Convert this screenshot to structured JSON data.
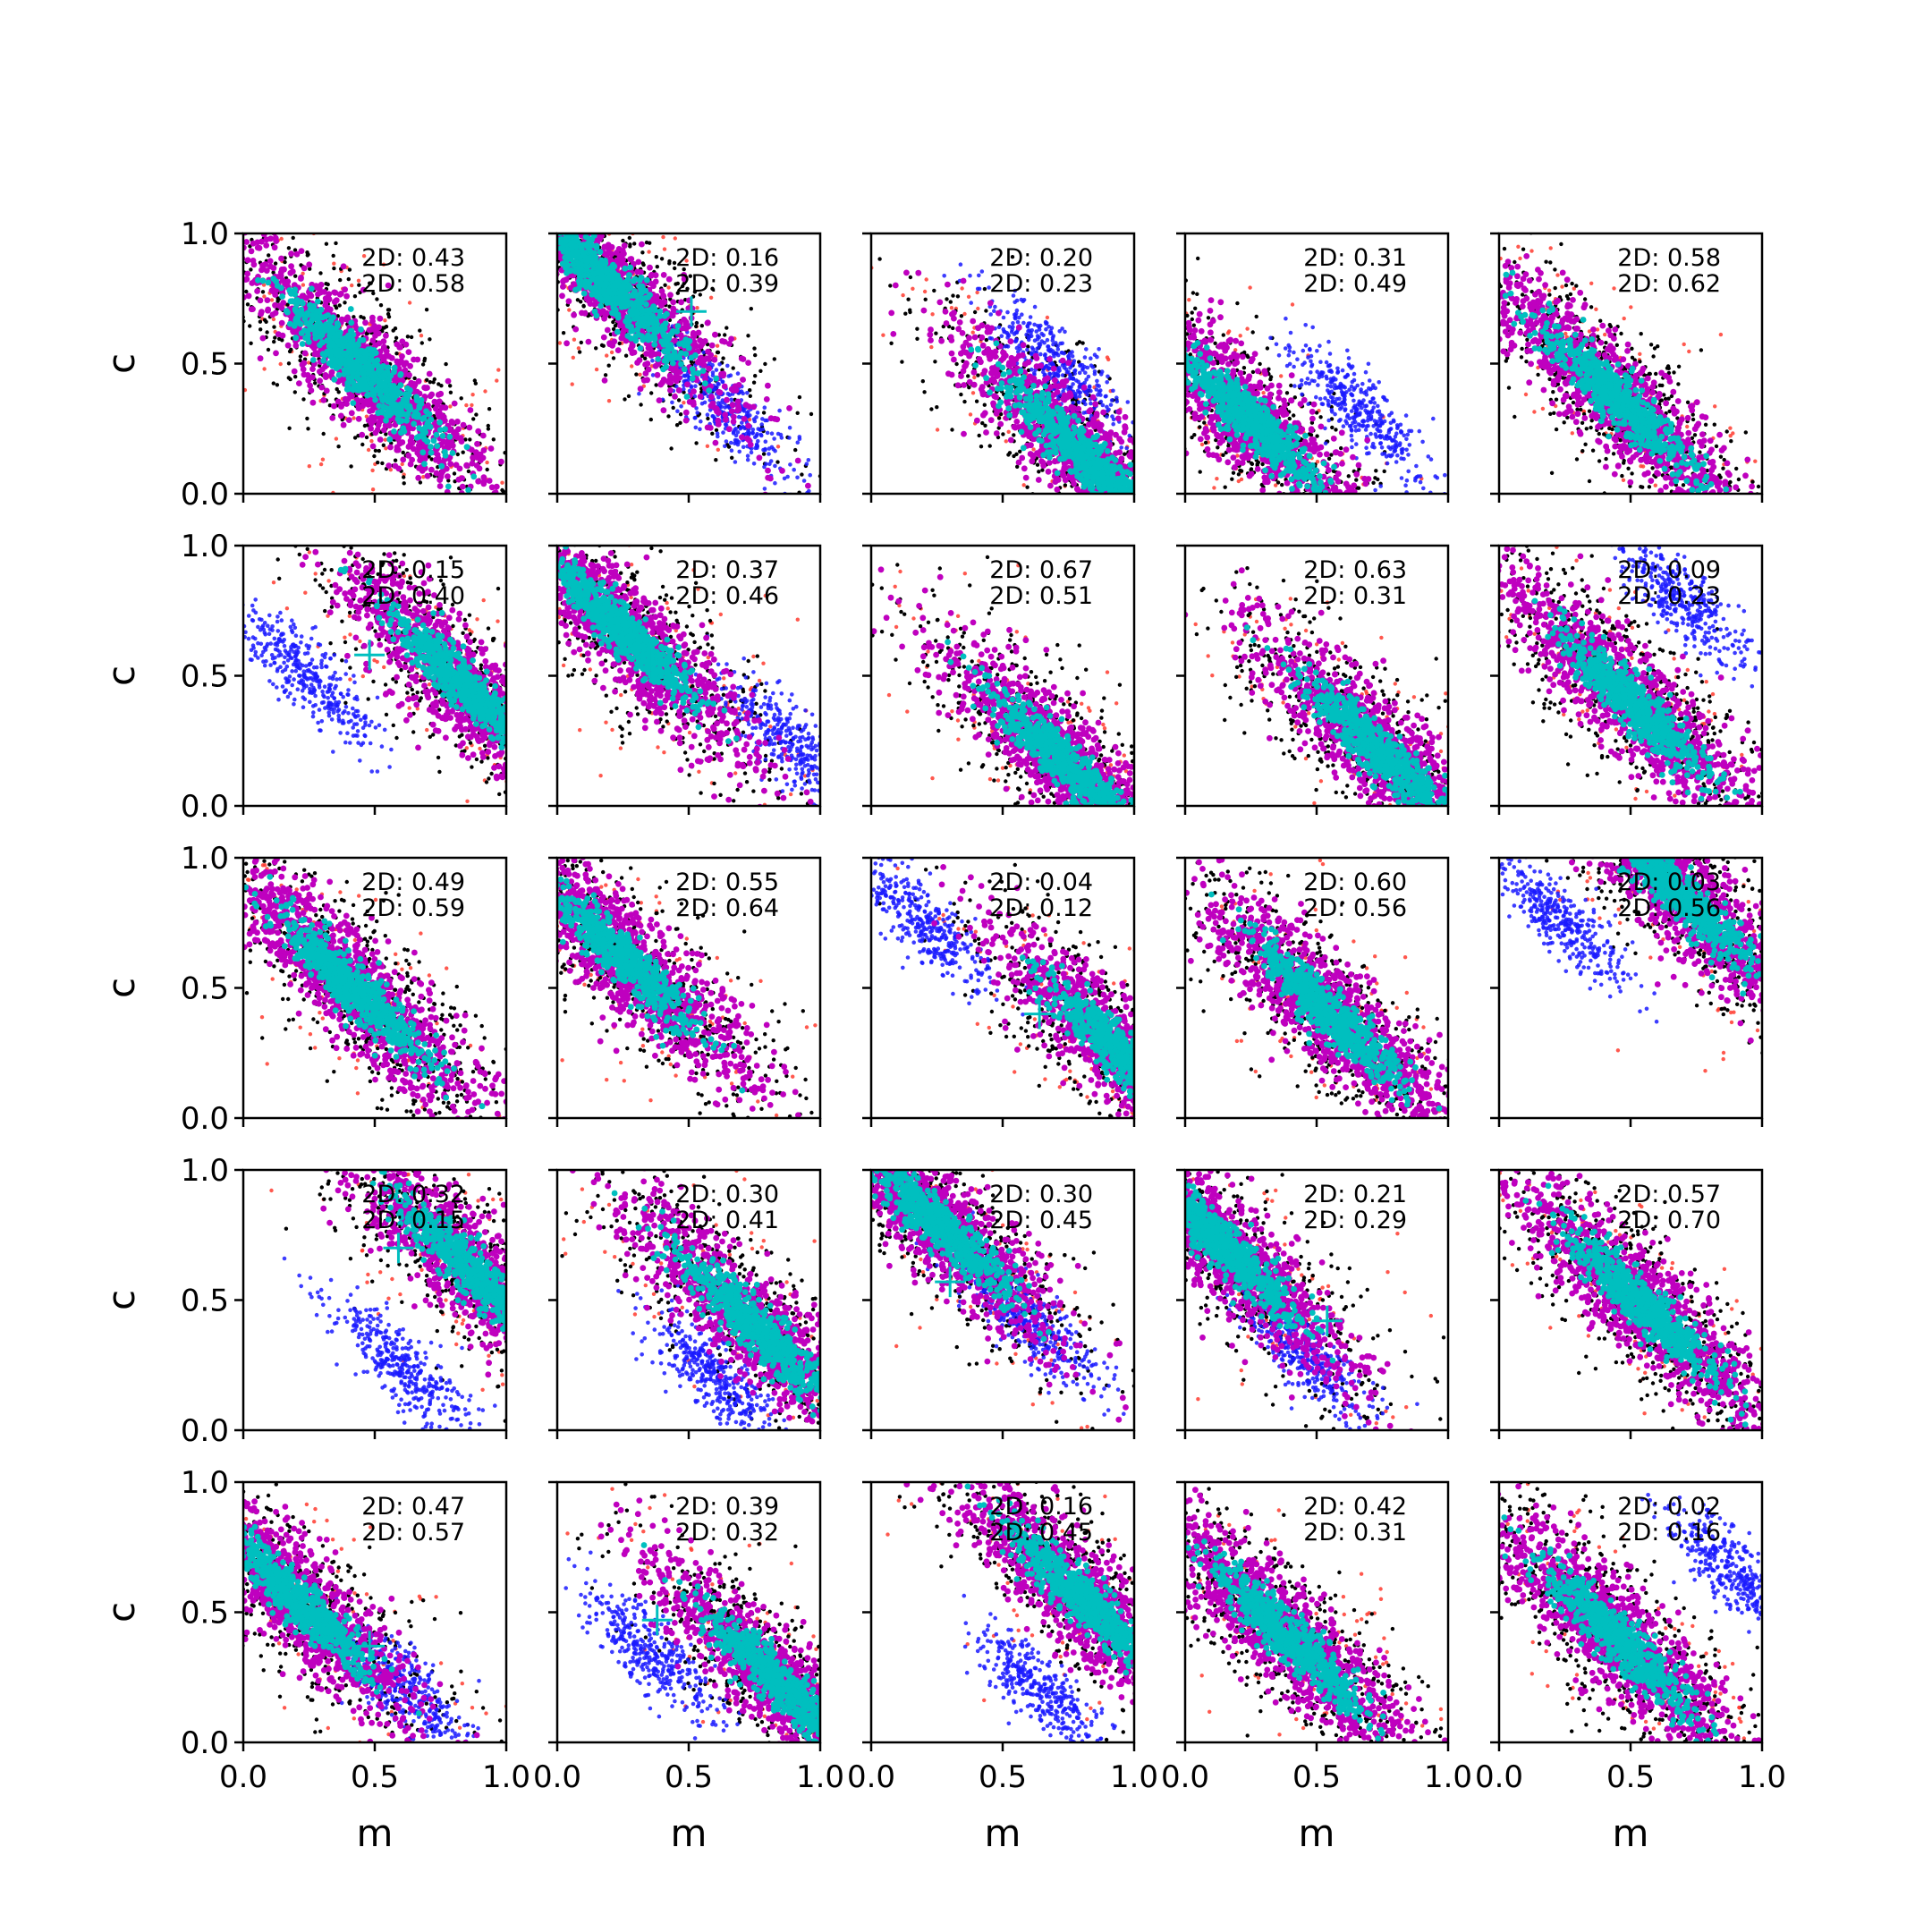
{
  "chart_data": {
    "type": "scatter",
    "layout": "5x5 grid of subplots",
    "xlabel": "m",
    "ylabel": "c",
    "xlim": [
      0.0,
      1.0
    ],
    "ylim": [
      0.0,
      1.0
    ],
    "xticks": [
      "0.0",
      "0.5",
      "1.0"
    ],
    "yticks": [
      "0.0",
      "0.5",
      "1.0"
    ],
    "grid": false,
    "colors": {
      "outer": "#000000",
      "outlier": "#ff3b2f",
      "prior": "#1a1aff",
      "posterior": "#bf00bf",
      "core": "#00bfbf",
      "marker": "#00bfbf"
    },
    "panels": [
      {
        "row": 0,
        "col": 0,
        "label1": "2D: 0.43",
        "label2": "2D: 0.58",
        "center": [
          0.45,
          0.48
        ],
        "prior": null,
        "cross": null
      },
      {
        "row": 0,
        "col": 1,
        "label1": "2D: 0.16",
        "label2": "2D: 0.39",
        "center": [
          0.2,
          0.8
        ],
        "prior": [
          0.65,
          0.32
        ],
        "cross": [
          0.51,
          0.7
        ]
      },
      {
        "row": 0,
        "col": 2,
        "label1": "2D: 0.20",
        "label2": "2D: 0.23",
        "center": [
          0.8,
          0.15
        ],
        "prior": [
          0.7,
          0.5
        ],
        "cross": null
      },
      {
        "row": 0,
        "col": 3,
        "label1": "2D: 0.31",
        "label2": "2D: 0.49",
        "center": [
          0.25,
          0.28
        ],
        "prior": [
          0.65,
          0.33
        ],
        "cross": null
      },
      {
        "row": 0,
        "col": 4,
        "label1": "2D: 0.58",
        "label2": "2D: 0.62",
        "center": [
          0.45,
          0.36
        ],
        "prior": null,
        "cross": null
      },
      {
        "row": 1,
        "col": 0,
        "label1": "2D: 0.15",
        "label2": "2D: 0.40",
        "center": [
          0.85,
          0.45
        ],
        "prior": [
          0.25,
          0.5
        ],
        "cross": [
          0.48,
          0.58
        ]
      },
      {
        "row": 1,
        "col": 1,
        "label1": "2D: 0.37",
        "label2": "2D: 0.46",
        "center": [
          0.25,
          0.68
        ],
        "prior": [
          0.9,
          0.22
        ],
        "cross": [
          0.35,
          0.55
        ]
      },
      {
        "row": 1,
        "col": 2,
        "label1": "2D: 0.67",
        "label2": "2D: 0.51",
        "center": [
          0.75,
          0.15
        ],
        "prior": null,
        "cross": null
      },
      {
        "row": 1,
        "col": 3,
        "label1": "2D: 0.63",
        "label2": "2D: 0.31",
        "center": [
          0.75,
          0.2
        ],
        "prior": null,
        "cross": [
          0.54,
          0.38
        ]
      },
      {
        "row": 1,
        "col": 4,
        "label1": "2D: 0.09",
        "label2": "2D: 0.23",
        "center": [
          0.5,
          0.4
        ],
        "prior": [
          0.7,
          0.78
        ],
        "cross": null
      },
      {
        "row": 2,
        "col": 0,
        "label1": "2D: 0.49",
        "label2": "2D: 0.59",
        "center": [
          0.42,
          0.5
        ],
        "prior": null,
        "cross": null
      },
      {
        "row": 2,
        "col": 1,
        "label1": "2D: 0.55",
        "label2": "2D: 0.64",
        "center": [
          0.25,
          0.62
        ],
        "prior": null,
        "cross": null
      },
      {
        "row": 2,
        "col": 2,
        "label1": "2D: 0.04",
        "label2": "2D: 0.12",
        "center": [
          0.95,
          0.25
        ],
        "prior": [
          0.2,
          0.75
        ],
        "cross": [
          0.64,
          0.4
        ]
      },
      {
        "row": 2,
        "col": 3,
        "label1": "2D: 0.60",
        "label2": "2D: 0.56",
        "center": [
          0.55,
          0.4
        ],
        "prior": null,
        "cross": null
      },
      {
        "row": 2,
        "col": 4,
        "label1": "2D: 0.03",
        "label2": "2D: 0.56",
        "center": [
          0.7,
          0.85
        ],
        "prior": [
          0.25,
          0.75
        ],
        "cross": null
      },
      {
        "row": 3,
        "col": 0,
        "label1": "2D: 0.32",
        "label2": "2D: 0.15",
        "center": [
          0.88,
          0.6
        ],
        "prior": [
          0.6,
          0.25
        ],
        "cross": [
          0.59,
          0.7
        ]
      },
      {
        "row": 3,
        "col": 1,
        "label1": "2D: 0.30",
        "label2": "2D: 0.41",
        "center": [
          0.75,
          0.4
        ],
        "prior": [
          0.6,
          0.2
        ],
        "cross": null
      },
      {
        "row": 3,
        "col": 2,
        "label1": "2D: 0.30",
        "label2": "2D: 0.45",
        "center": [
          0.25,
          0.8
        ],
        "prior": [
          0.6,
          0.42
        ],
        "cross": [
          0.3,
          0.57
        ]
      },
      {
        "row": 3,
        "col": 3,
        "label1": "2D: 0.21",
        "label2": "2D: 0.29",
        "center": [
          0.15,
          0.7
        ],
        "prior": [
          0.45,
          0.3
        ],
        "cross": [
          0.54,
          0.42
        ]
      },
      {
        "row": 3,
        "col": 4,
        "label1": "2D: 0.57",
        "label2": "2D: 0.70",
        "center": [
          0.55,
          0.48
        ],
        "prior": null,
        "cross": null
      },
      {
        "row": 4,
        "col": 0,
        "label1": "2D: 0.47",
        "label2": "2D: 0.57",
        "center": [
          0.2,
          0.55
        ],
        "prior": [
          0.6,
          0.22
        ],
        "cross": [
          0.48,
          0.37
        ]
      },
      {
        "row": 4,
        "col": 1,
        "label1": "2D: 0.39",
        "label2": "2D: 0.32",
        "center": [
          0.85,
          0.22
        ],
        "prior": [
          0.35,
          0.35
        ],
        "cross": [
          0.38,
          0.47
        ]
      },
      {
        "row": 4,
        "col": 2,
        "label1": "2D: 0.16",
        "label2": "2D: 0.45",
        "center": [
          0.8,
          0.55
        ],
        "prior": [
          0.65,
          0.2
        ],
        "cross": null
      },
      {
        "row": 4,
        "col": 3,
        "label1": "2D: 0.42",
        "label2": "2D: 0.31",
        "center": [
          0.4,
          0.4
        ],
        "prior": null,
        "cross": null
      },
      {
        "row": 4,
        "col": 4,
        "label1": "2D: 0.02",
        "label2": "2D: 0.16",
        "center": [
          0.45,
          0.4
        ],
        "prior": [
          0.9,
          0.65
        ],
        "cross": null
      }
    ]
  }
}
